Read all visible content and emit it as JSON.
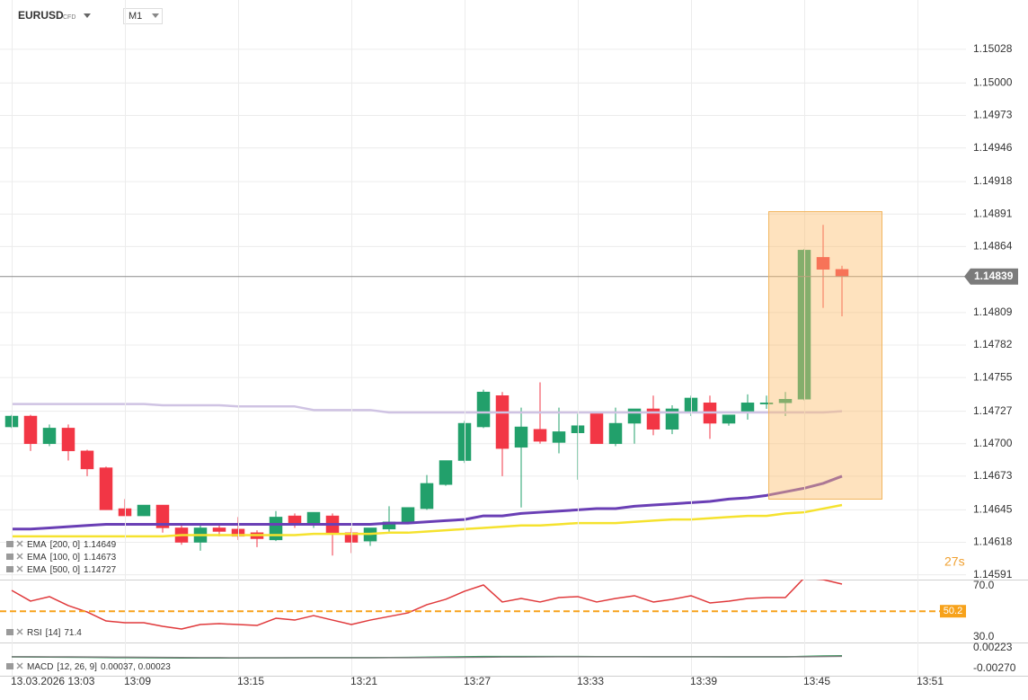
{
  "header": {
    "symbol": "EURUSD",
    "badge": "CFD",
    "timeframe": "M1"
  },
  "chart_data": [
    {
      "type": "candlestick",
      "categories": [
        "13.03.2026 13:03",
        null,
        null,
        null,
        null,
        null,
        "13:09",
        null,
        null,
        null,
        null,
        null,
        "13:15",
        null,
        null,
        null,
        null,
        null,
        "13:21",
        null,
        null,
        null,
        null,
        null,
        "13:27",
        null,
        null,
        null,
        null,
        null,
        "13:33",
        null,
        null,
        null,
        null,
        null,
        "13:39",
        null,
        null,
        null,
        null,
        null,
        "13:45",
        null,
        null,
        null,
        null,
        null,
        "13:51"
      ],
      "open": [
        1.14714,
        1.14723,
        1.147,
        1.14713,
        1.14694,
        1.1468,
        1.14646,
        1.1464,
        1.14649,
        1.1463,
        1.14618,
        1.1463,
        1.14629,
        1.14626,
        1.1462,
        1.1464,
        1.14633,
        1.1464,
        1.14626,
        1.14619,
        1.14629,
        1.14634,
        1.14646,
        1.14666,
        1.14686,
        1.14714,
        1.1474,
        1.14697,
        1.14712,
        1.14701,
        1.14709,
        1.14725,
        1.147,
        1.14717,
        1.14729,
        1.14712,
        1.14726,
        1.14734,
        1.14717,
        1.14726,
        1.14733,
        1.14734,
        1.14737,
        1.14855,
        1.14845,
        null,
        null,
        null,
        null
      ],
      "high": [
        1.14724,
        1.14724,
        1.14716,
        1.14716,
        1.14695,
        1.14681,
        1.14654,
        1.14649,
        1.14649,
        1.14632,
        1.14632,
        1.14632,
        1.14639,
        1.14628,
        1.14644,
        1.14642,
        1.14643,
        1.14642,
        1.1463,
        1.1463,
        1.14648,
        1.14647,
        1.14674,
        1.14686,
        1.14719,
        1.14745,
        1.14743,
        1.1473,
        1.14751,
        1.1473,
        1.14725,
        1.14726,
        1.1473,
        1.14729,
        1.1474,
        1.14732,
        1.1474,
        1.1474,
        1.14724,
        1.14741,
        1.1474,
        1.14743,
        1.14862,
        1.14882,
        1.14848,
        null,
        null,
        null,
        null
      ],
      "low": [
        1.14713,
        1.14694,
        1.14698,
        1.14686,
        1.14673,
        1.14645,
        1.1464,
        1.1464,
        1.14626,
        1.14616,
        1.14611,
        1.14623,
        1.1462,
        1.14614,
        1.14619,
        1.1463,
        1.1463,
        1.14607,
        1.14609,
        1.14615,
        1.14627,
        1.14633,
        1.14645,
        1.14665,
        1.14684,
        1.14713,
        1.14673,
        1.14647,
        1.147,
        1.14692,
        1.1467,
        1.147,
        1.14698,
        1.147,
        1.14707,
        1.14708,
        1.14723,
        1.14704,
        1.14715,
        1.1472,
        1.14729,
        1.14723,
        1.14736,
        1.14813,
        1.14806,
        null,
        null,
        null,
        null
      ],
      "close": [
        1.14723,
        1.147,
        1.14713,
        1.14694,
        1.14679,
        1.14645,
        1.1464,
        1.14649,
        1.1463,
        1.14618,
        1.1463,
        1.14627,
        1.14623,
        1.14621,
        1.14639,
        1.14633,
        1.14643,
        1.14625,
        1.14618,
        1.1463,
        1.14635,
        1.14647,
        1.14667,
        1.14686,
        1.14717,
        1.14743,
        1.14696,
        1.14714,
        1.14702,
        1.1471,
        1.14715,
        1.147,
        1.14717,
        1.14729,
        1.14712,
        1.14729,
        1.14738,
        1.14717,
        1.14724,
        1.14734,
        1.14734,
        1.14737,
        1.14861,
        1.14845,
        1.14839,
        null,
        null,
        null,
        null
      ],
      "up_color": "#22a06b",
      "down_color": "#f23645",
      "series": [
        {
          "name": "EMA",
          "params": "[200, 0]",
          "last": 1.14649,
          "color": "#f5e22e",
          "values": [
            1.14623,
            1.14623,
            1.14623,
            1.14623,
            1.14623,
            1.14623,
            1.14623,
            1.14623,
            1.14623,
            1.14624,
            1.14624,
            1.14624,
            1.14624,
            1.14624,
            1.14624,
            1.14624,
            1.14625,
            1.14625,
            1.14625,
            1.14625,
            1.14626,
            1.14626,
            1.14627,
            1.14628,
            1.14629,
            1.1463,
            1.14631,
            1.14632,
            1.14632,
            1.14633,
            1.14634,
            1.14634,
            1.14634,
            1.14635,
            1.14636,
            1.14637,
            1.14637,
            1.14638,
            1.14639,
            1.1464,
            1.1464,
            1.14642,
            1.14643,
            1.14646,
            1.14649,
            null,
            null,
            null,
            null
          ]
        },
        {
          "name": "EMA",
          "params": "[100, 0]",
          "last": 1.14673,
          "color": "#6a3fb5",
          "values": [
            1.14629,
            1.14629,
            1.1463,
            1.14631,
            1.14632,
            1.14633,
            1.14633,
            1.14633,
            1.14633,
            1.14633,
            1.14633,
            1.14633,
            1.14633,
            1.14633,
            1.14633,
            1.14633,
            1.14633,
            1.14633,
            1.14633,
            1.14633,
            1.14634,
            1.14634,
            1.14635,
            1.14636,
            1.14637,
            1.1464,
            1.1464,
            1.14642,
            1.14643,
            1.14644,
            1.14645,
            1.14646,
            1.14646,
            1.14648,
            1.14649,
            1.1465,
            1.14651,
            1.14652,
            1.14654,
            1.14655,
            1.14657,
            1.1466,
            1.14663,
            1.14667,
            1.14673,
            null,
            null,
            null,
            null
          ]
        },
        {
          "name": "EMA",
          "params": "[500, 0]",
          "last": 1.14727,
          "color": "#cfc3e3",
          "values": [
            1.14733,
            1.14733,
            1.14733,
            1.14733,
            1.14733,
            1.14733,
            1.14733,
            1.14733,
            1.14732,
            1.14732,
            1.14732,
            1.14732,
            1.14731,
            1.14731,
            1.14731,
            1.14731,
            1.14728,
            1.14728,
            1.14728,
            1.14728,
            1.14726,
            1.14726,
            1.14726,
            1.14726,
            1.14726,
            1.14726,
            1.14726,
            1.14726,
            1.14726,
            1.14726,
            1.14726,
            1.14726,
            1.14726,
            1.14726,
            1.14726,
            1.14726,
            1.14726,
            1.14726,
            1.14726,
            1.14726,
            1.14726,
            1.14726,
            1.14726,
            1.14726,
            1.14727,
            null,
            null,
            null,
            null
          ]
        }
      ],
      "ylim": [
        1.14587,
        1.15069
      ],
      "yticks": [
        1.15028,
        {
          "value": 1.15,
          "label": "1.15000"
        },
        1.14973,
        1.14946,
        1.14918,
        1.14891,
        1.14864,
        1.14809,
        1.14782,
        1.14755,
        1.14727,
        {
          "value": 1.147,
          "label": "1.14700"
        },
        1.14673,
        1.14645,
        1.14618,
        1.14591
      ],
      "grid": true,
      "last_price": 1.14839,
      "countdown": "27s"
    },
    {
      "type": "line",
      "series": [
        {
          "name": "RSI",
          "params": "[14]",
          "last": 71.4,
          "color": "#e0393b",
          "values": [
            66.5,
            58.1,
            61.6,
            54.6,
            49.6,
            42.6,
            41.2,
            41.2,
            38.4,
            36.3,
            39.8,
            40.5,
            39.8,
            39.1,
            44.7,
            43.3,
            46.8,
            43.3,
            39.8,
            43.3,
            46.1,
            48.9,
            55.3,
            59.5,
            65.8,
            70.7,
            57.4,
            60.2,
            57.4,
            60.9,
            61.6,
            57.4,
            60.2,
            62.3,
            57.4,
            59.5,
            62.3,
            56.7,
            58.1,
            60.2,
            60.9,
            60.9,
            76.3,
            74.9,
            71.4,
            null,
            null,
            null,
            null
          ]
        }
      ],
      "ylim": [
        26.5,
        74.9
      ],
      "yticks": [
        {
          "value": 70,
          "label": "70.0"
        },
        {
          "value": 30,
          "label": "30.0"
        }
      ],
      "level": 50.2,
      "level_color": "#f7a21b"
    },
    {
      "type": "line",
      "legend_name": "MACD",
      "legend_params": "[12, 26, 9]",
      "legend_value": "0.00037, 0.00023",
      "series": [
        {
          "color": "#2e9d5a",
          "values": [
            8e-05,
            5e-05,
            3e-05,
            0,
            -3e-05,
            -8e-05,
            -0.00011,
            -0.00013,
            -0.00015,
            -0.00017,
            -0.00017,
            -0.00017,
            -0.00017,
            -0.00016,
            -0.00014,
            -0.00013,
            -0.00011,
            -0.00011,
            -0.00011,
            -0.0001,
            -8e-05,
            -5e-05,
            0,
            5e-05,
            0.00011,
            0.00017,
            0.00017,
            0.00018,
            0.00017,
            0.00017,
            0.00016,
            0.00014,
            0.00014,
            0.00014,
            0.00013,
            0.00013,
            0.00013,
            0.00011,
            0.0001,
            0.0001,
            9e-05,
            9e-05,
            0.0002,
            0.00031,
            0.00037,
            null,
            null,
            null,
            null
          ]
        },
        {
          "color": "#7b7b7b",
          "values": [
            0.00012,
            0.00011,
            0.0001,
            8e-05,
            6e-05,
            3e-05,
            0,
            -3e-05,
            -5e-05,
            -7e-05,
            -9e-05,
            -0.00011,
            -0.00012,
            -0.00013,
            -0.00013,
            -0.00013,
            -0.00013,
            -0.00013,
            -0.00012,
            -0.00012,
            -0.00011,
            -0.0001,
            -8e-05,
            -5e-05,
            -2e-05,
            2e-05,
            5e-05,
            7e-05,
            9e-05,
            0.00011,
            0.00012,
            0.00012,
            0.00013,
            0.00013,
            0.00013,
            0.00013,
            0.00013,
            0.00013,
            0.00012,
            0.00012,
            0.00011,
            0.00011,
            0.00013,
            0.00017,
            0.00023,
            null,
            null,
            null,
            null
          ]
        }
      ],
      "ylim": [
        -0.00441,
        0.00309
      ],
      "yticks": [
        0.00223,
        {
          "value": -0.0027,
          "label": "-0.00270"
        }
      ]
    }
  ]
}
